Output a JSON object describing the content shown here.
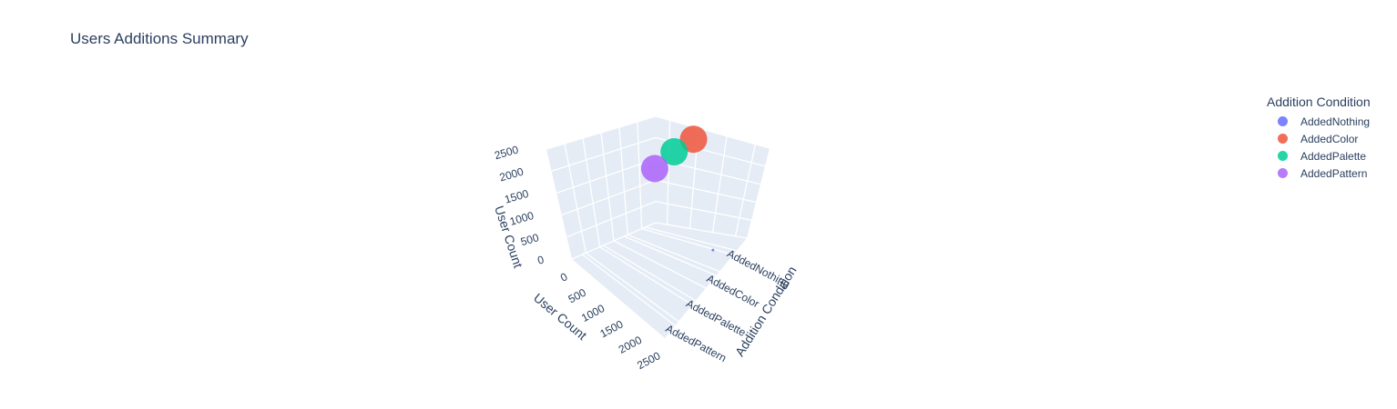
{
  "chart_data": {
    "type": "scatter3d",
    "title": "Users Additions Summary",
    "legend_title": "Addition Condition",
    "legend_placement": "top-right",
    "axes": {
      "x": {
        "title": "Addition Condition",
        "ticks": [
          "AddedNothing",
          "AddedColor",
          "AddedPalette",
          "AddedPattern"
        ]
      },
      "y": {
        "title": "User Count",
        "ticks": [
          "0",
          "500",
          "1000",
          "1500",
          "2000",
          "2500"
        ],
        "range": [
          0,
          2500
        ]
      },
      "z": {
        "title": "User Count",
        "ticks": [
          "0",
          "500",
          "1000",
          "1500",
          "2000",
          "2500"
        ],
        "range": [
          0,
          2500
        ]
      }
    },
    "series": [
      {
        "name": "AddedNothing",
        "color": "#636efa",
        "x": "AddedNothing",
        "y": 0,
        "z": 0
      },
      {
        "name": "AddedColor",
        "color": "#EF553B",
        "x": "AddedColor",
        "y": 2500,
        "z": 2500
      },
      {
        "name": "AddedPalette",
        "color": "#00cc96",
        "x": "AddedPalette",
        "y": 2050,
        "z": 2050
      },
      {
        "name": "AddedPattern",
        "color": "#ab63fa",
        "x": "AddedPattern",
        "y": 1500,
        "z": 1500
      }
    ]
  }
}
